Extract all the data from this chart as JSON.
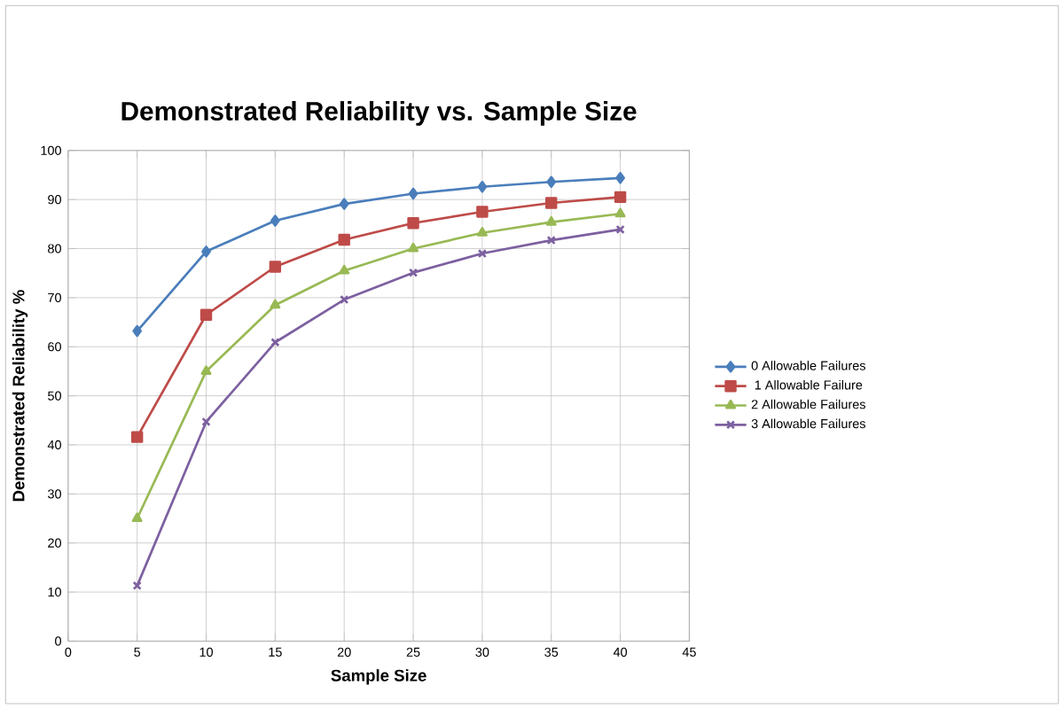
{
  "chart_data": {
    "type": "line",
    "title": "Demonstrated Reliability vs. Sample Size",
    "xlabel": "Sample Size",
    "ylabel": "Demonstrated Reliability %",
    "x": [
      5,
      10,
      15,
      20,
      25,
      30,
      35,
      40
    ],
    "series": [
      {
        "name": "0 Allowable Failures",
        "color": "#4a7ebb",
        "marker": "diamond",
        "values": [
          63.2,
          79.4,
          85.7,
          89.1,
          91.2,
          92.6,
          93.6,
          94.4
        ]
      },
      {
        "name": "1 Allowable Failure",
        "color": "#be4b48",
        "marker": "square",
        "values": [
          41.6,
          66.5,
          76.3,
          81.8,
          85.2,
          87.5,
          89.3,
          90.5
        ]
      },
      {
        "name": "2 Allowable Failures",
        "color": "#98b954",
        "marker": "triangle",
        "values": [
          25.0,
          55.0,
          68.5,
          75.5,
          80.0,
          83.2,
          85.4,
          87.1
        ]
      },
      {
        "name": "3 Allowable Failures",
        "color": "#7d60a0",
        "marker": "cross",
        "values": [
          11.3,
          44.7,
          60.9,
          69.6,
          75.1,
          79.0,
          81.7,
          83.9
        ]
      }
    ],
    "xlim": [
      0,
      45
    ],
    "xticks": [
      0,
      5,
      10,
      15,
      20,
      25,
      30,
      35,
      40,
      45
    ],
    "ylim": [
      0,
      100
    ],
    "yticks": [
      0,
      10,
      20,
      30,
      40,
      50,
      60,
      70,
      80,
      90,
      100
    ],
    "grid": true,
    "legend": "right",
    "line_style": "solid"
  }
}
